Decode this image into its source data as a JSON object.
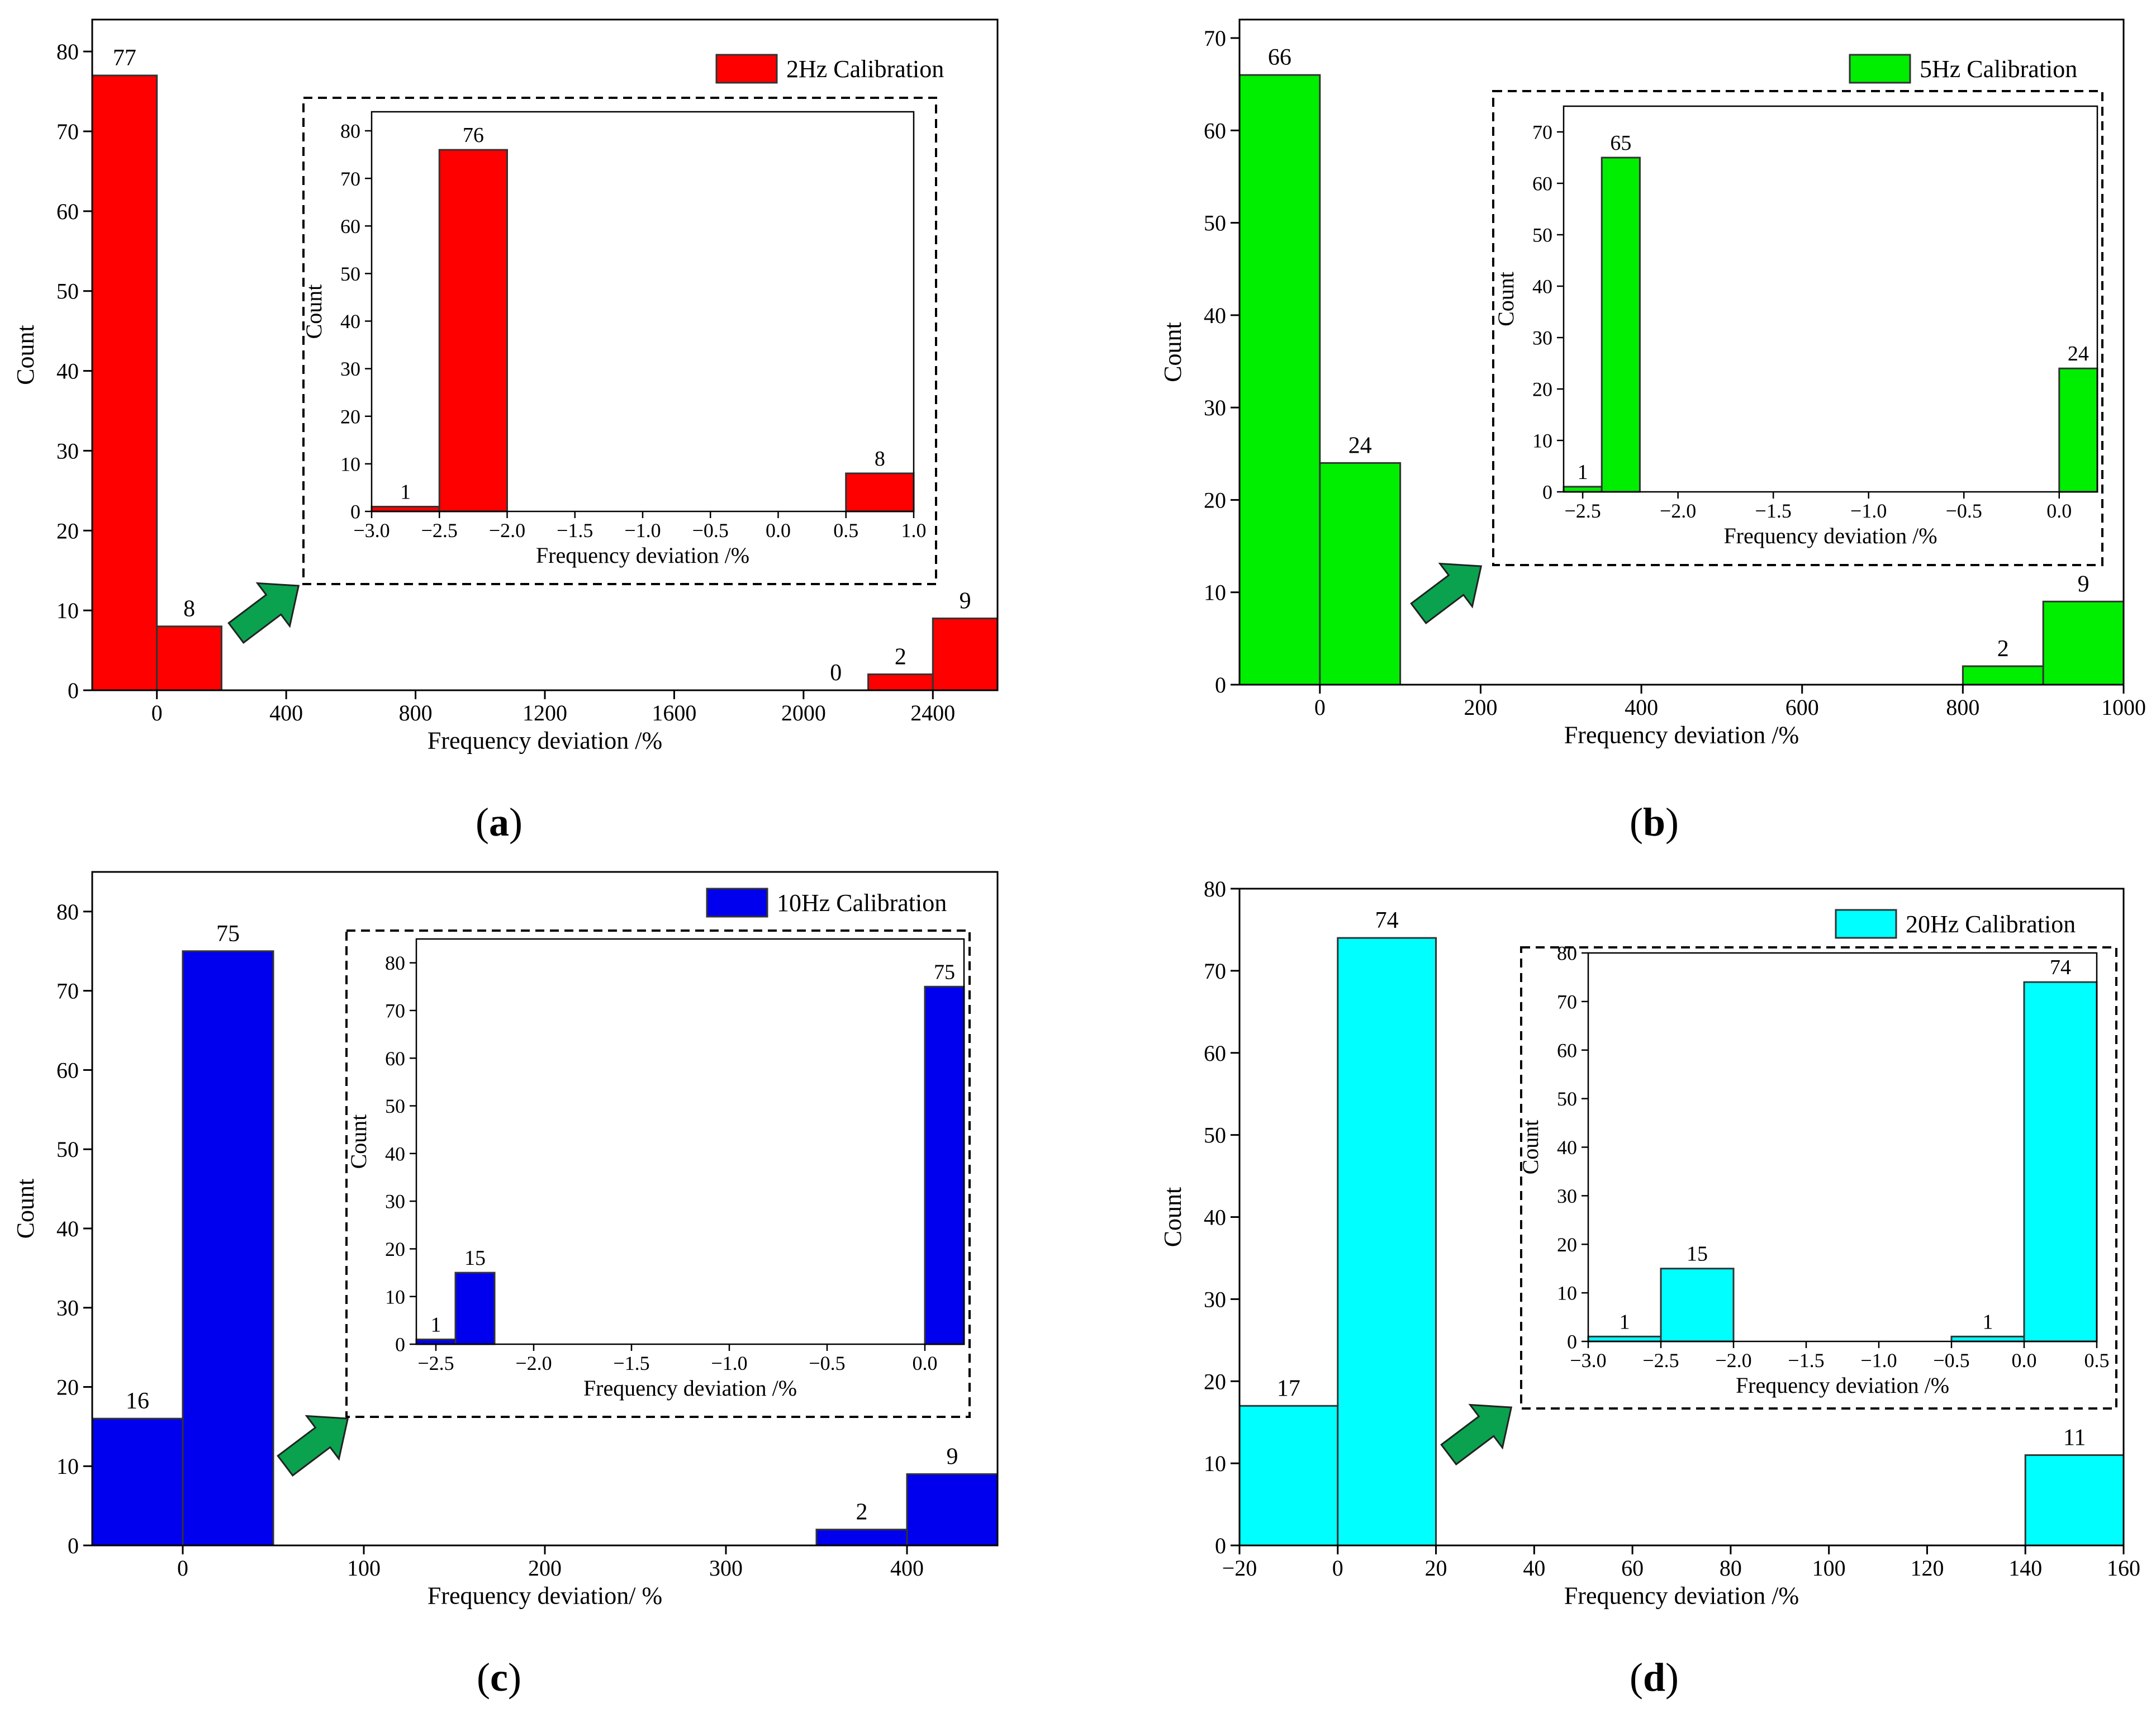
{
  "chart_data": [
    {
      "type": "histogram",
      "panel": "a",
      "legend": "2Hz Calibration",
      "color": "#ff0000",
      "xlabel": "Frequency deviation /%",
      "ylabel": "Count",
      "xlim": [
        -200,
        2600
      ],
      "ylim": [
        0,
        84
      ],
      "xticks": [
        "0",
        "400",
        "800",
        "1200",
        "1600",
        "2000",
        "2400"
      ],
      "yticks": [
        "0",
        "10",
        "20",
        "30",
        "40",
        "50",
        "60",
        "70",
        "80"
      ],
      "bins": [
        {
          "x0": -200,
          "x1": 0,
          "value": 77,
          "label": "77"
        },
        {
          "x0": 0,
          "x1": 200,
          "value": 8,
          "label": "8"
        },
        {
          "x0": 2000,
          "x1": 2200,
          "value": 0,
          "label": "0"
        },
        {
          "x0": 2200,
          "x1": 2400,
          "value": 2,
          "label": "2"
        },
        {
          "x0": 2400,
          "x1": 2600,
          "value": 9,
          "label": "9"
        }
      ],
      "inset": {
        "xlabel": "Frequency deviation /%",
        "ylabel": "Count",
        "xlim": [
          -3.0,
          1.0
        ],
        "ylim": [
          0,
          84
        ],
        "xticks": [
          "−3.0",
          "−2.5",
          "−2.0",
          "−1.5",
          "−1.0",
          "−0.5",
          "0.0",
          "0.5",
          "1.0"
        ],
        "yticks": [
          "0",
          "10",
          "20",
          "30",
          "40",
          "50",
          "60",
          "70",
          "80"
        ],
        "bins": [
          {
            "x0": -3.0,
            "x1": -2.5,
            "value": 1,
            "label": "1"
          },
          {
            "x0": -2.5,
            "x1": -2.0,
            "value": 76,
            "label": "76"
          },
          {
            "x0": 0.5,
            "x1": 1.0,
            "value": 8,
            "label": "8"
          }
        ]
      }
    },
    {
      "type": "histogram",
      "panel": "b",
      "legend": "5Hz Calibration",
      "color": "#00ee00",
      "xlabel": "Frequency deviation /%",
      "ylabel": "Count",
      "xlim": [
        -100,
        1000
      ],
      "ylim": [
        0,
        72
      ],
      "xticks": [
        "0",
        "200",
        "400",
        "600",
        "800",
        "1000"
      ],
      "yticks": [
        "0",
        "10",
        "20",
        "30",
        "40",
        "50",
        "60",
        "70"
      ],
      "bins": [
        {
          "x0": -100,
          "x1": 0,
          "value": 66,
          "label": "66"
        },
        {
          "x0": 0,
          "x1": 100,
          "value": 24,
          "label": "24"
        },
        {
          "x0": 800,
          "x1": 900,
          "value": 2,
          "label": "2"
        },
        {
          "x0": 900,
          "x1": 1000,
          "value": 9,
          "label": "9"
        }
      ],
      "inset": {
        "xlabel": "Frequency deviation /%",
        "ylabel": "Count",
        "xlim": [
          -2.6,
          0.2
        ],
        "ylim": [
          0,
          75
        ],
        "xticks": [
          "−2.5",
          "−2.0",
          "−1.5",
          "−1.0",
          "−0.5",
          "0.0"
        ],
        "yticks": [
          "0",
          "10",
          "20",
          "30",
          "40",
          "50",
          "60",
          "70"
        ],
        "bins": [
          {
            "x0": -2.6,
            "x1": -2.4,
            "value": 1,
            "label": "1"
          },
          {
            "x0": -2.4,
            "x1": -2.2,
            "value": 65,
            "label": "65"
          },
          {
            "x0": 0.0,
            "x1": 0.2,
            "value": 24,
            "label": "24"
          }
        ]
      }
    },
    {
      "type": "histogram",
      "panel": "c",
      "legend": "10Hz Calibration",
      "color": "#0000ee",
      "xlabel": "Frequency deviation/ %",
      "ylabel": "Count",
      "xlim": [
        -50,
        450
      ],
      "ylim": [
        0,
        85
      ],
      "xticks": [
        "0",
        "100",
        "200",
        "300",
        "400"
      ],
      "yticks": [
        "0",
        "10",
        "20",
        "30",
        "40",
        "50",
        "60",
        "70",
        "80"
      ],
      "bins": [
        {
          "x0": -50,
          "x1": 0,
          "value": 16,
          "label": "16"
        },
        {
          "x0": 0,
          "x1": 50,
          "value": 75,
          "label": "75"
        },
        {
          "x0": 350,
          "x1": 400,
          "value": 2,
          "label": "2"
        },
        {
          "x0": 400,
          "x1": 450,
          "value": 9,
          "label": "9"
        }
      ],
      "inset": {
        "xlabel": "Frequency deviation /%",
        "ylabel": "Count",
        "xlim": [
          -2.6,
          0.2
        ],
        "ylim": [
          0,
          85
        ],
        "xticks": [
          "−2.5",
          "−2.0",
          "−1.5",
          "−1.0",
          "−0.5",
          "0.0"
        ],
        "yticks": [
          "0",
          "10",
          "20",
          "30",
          "40",
          "50",
          "60",
          "70",
          "80"
        ],
        "bins": [
          {
            "x0": -2.6,
            "x1": -2.4,
            "value": 1,
            "label": "1"
          },
          {
            "x0": -2.4,
            "x1": -2.2,
            "value": 15,
            "label": "15"
          },
          {
            "x0": 0.0,
            "x1": 0.2,
            "value": 75,
            "label": "75"
          }
        ]
      }
    },
    {
      "type": "histogram",
      "panel": "d",
      "legend": "20Hz Calibration",
      "color": "#00ffff",
      "xlabel": "Frequency deviation /%",
      "ylabel": "Count",
      "xlim": [
        -20,
        160
      ],
      "ylim": [
        0,
        80
      ],
      "xticks": [
        "−20",
        "0",
        "20",
        "40",
        "60",
        "80",
        "100",
        "120",
        "140",
        "160"
      ],
      "yticks": [
        "0",
        "10",
        "20",
        "30",
        "40",
        "50",
        "60",
        "70",
        "80"
      ],
      "bins": [
        {
          "x0": -20,
          "x1": 0,
          "value": 17,
          "label": "17"
        },
        {
          "x0": 0,
          "x1": 20,
          "value": 74,
          "label": "74"
        },
        {
          "x0": 140,
          "x1": 160,
          "value": 11,
          "label": "11"
        }
      ],
      "inset": {
        "xlabel": "Frequency deviation /%",
        "ylabel": "Count",
        "xlim": [
          -3.0,
          0.5
        ],
        "ylim": [
          0,
          80
        ],
        "xticks": [
          "−3.0",
          "−2.5",
          "−2.0",
          "−1.5",
          "−1.0",
          "−0.5",
          "0.0",
          "0.5"
        ],
        "yticks": [
          "0",
          "10",
          "20",
          "30",
          "40",
          "50",
          "60",
          "70",
          "80"
        ],
        "bins": [
          {
            "x0": -3.0,
            "x1": -2.5,
            "value": 1,
            "label": "1"
          },
          {
            "x0": -2.5,
            "x1": -2.0,
            "value": 15,
            "label": "15"
          },
          {
            "x0": -0.5,
            "x1": 0.0,
            "value": 1,
            "label": "1"
          },
          {
            "x0": 0.0,
            "x1": 0.5,
            "value": 74,
            "label": "74"
          }
        ]
      }
    }
  ],
  "captions": [
    "a",
    "b",
    "c",
    "d"
  ],
  "arrow_color": "#0aa24f"
}
